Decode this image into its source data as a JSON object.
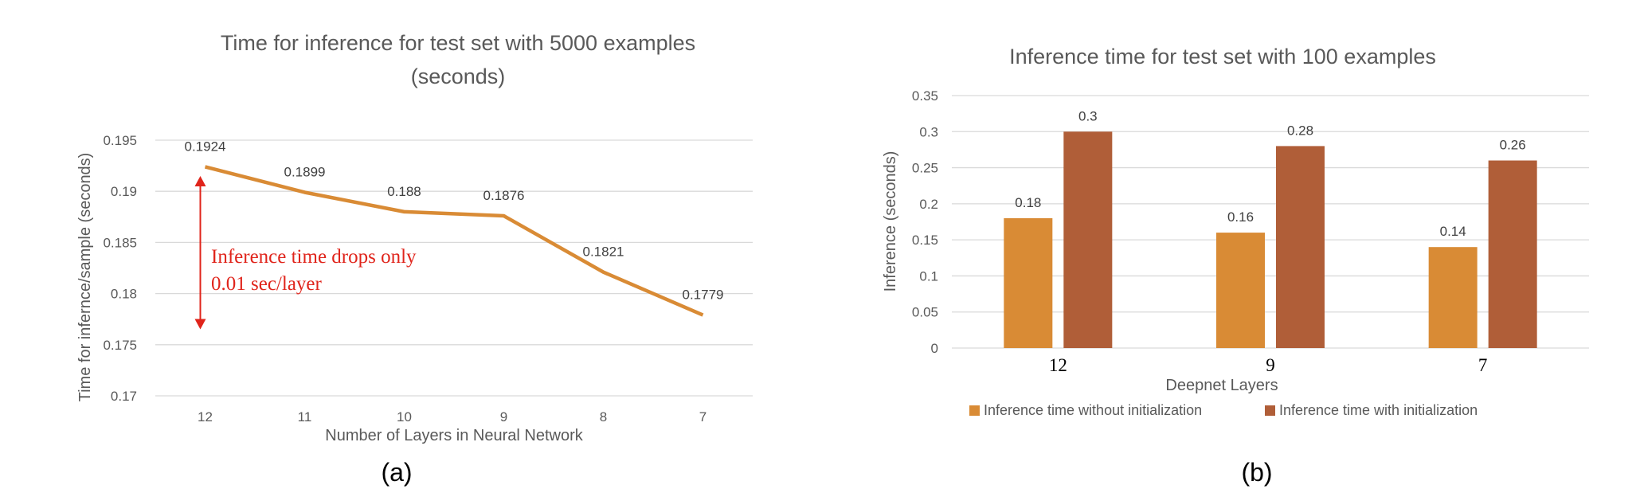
{
  "chart_data": [
    {
      "type": "line",
      "title_line1": "Time for inference for test set with 5000 examples",
      "title_line2": "(seconds)",
      "xlabel": "Number of Layers in Neural Network",
      "ylabel": "Time for inferncе/sample (seconds)",
      "categories": [
        "12",
        "11",
        "10",
        "9",
        "8",
        "7"
      ],
      "series": [
        {
          "values": [
            0.1924,
            0.1899,
            0.188,
            0.1876,
            0.1821,
            0.1779
          ],
          "color": "#d98b35"
        }
      ],
      "data_labels": [
        "0.1924",
        "0.1899",
        "0.188",
        "0.1876",
        "0.1821",
        "0.1779"
      ],
      "ylim": [
        0.17,
        0.195
      ],
      "yticks": [
        "0.195",
        "0.19",
        "0.185",
        "0.18",
        "0.175",
        "0.17"
      ],
      "grid": true,
      "annotation": {
        "line1": "Inference time drops only",
        "line2": "0.01 sec/layer",
        "color": "#e0241b",
        "arrow_range": [
          0.1915,
          0.1765
        ]
      },
      "panel_label": "(a)"
    },
    {
      "type": "bar",
      "title": "Inference time for test set with 100 examples",
      "xlabel": "Deepnet Layers",
      "ylabel": "Inference (seconds)",
      "categories": [
        "12",
        "9",
        "7"
      ],
      "series": [
        {
          "name": "Inference time without initialization",
          "values": [
            0.18,
            0.16,
            0.14
          ],
          "color": "#d98b35"
        },
        {
          "name": "Inference time with initialization",
          "values": [
            0.3,
            0.28,
            0.26
          ],
          "color": "#b05e38"
        }
      ],
      "data_labels": [
        [
          "0.18",
          "0.16",
          "0.14"
        ],
        [
          "0.3",
          "0.28",
          "0.26"
        ]
      ],
      "ylim": [
        0,
        0.35
      ],
      "yticks": [
        "0.35",
        "0.3",
        "0.25",
        "0.2",
        "0.15",
        "0.1",
        "0.05",
        "0"
      ],
      "grid": true,
      "legend": "bottom",
      "panel_label": "(b)"
    }
  ]
}
